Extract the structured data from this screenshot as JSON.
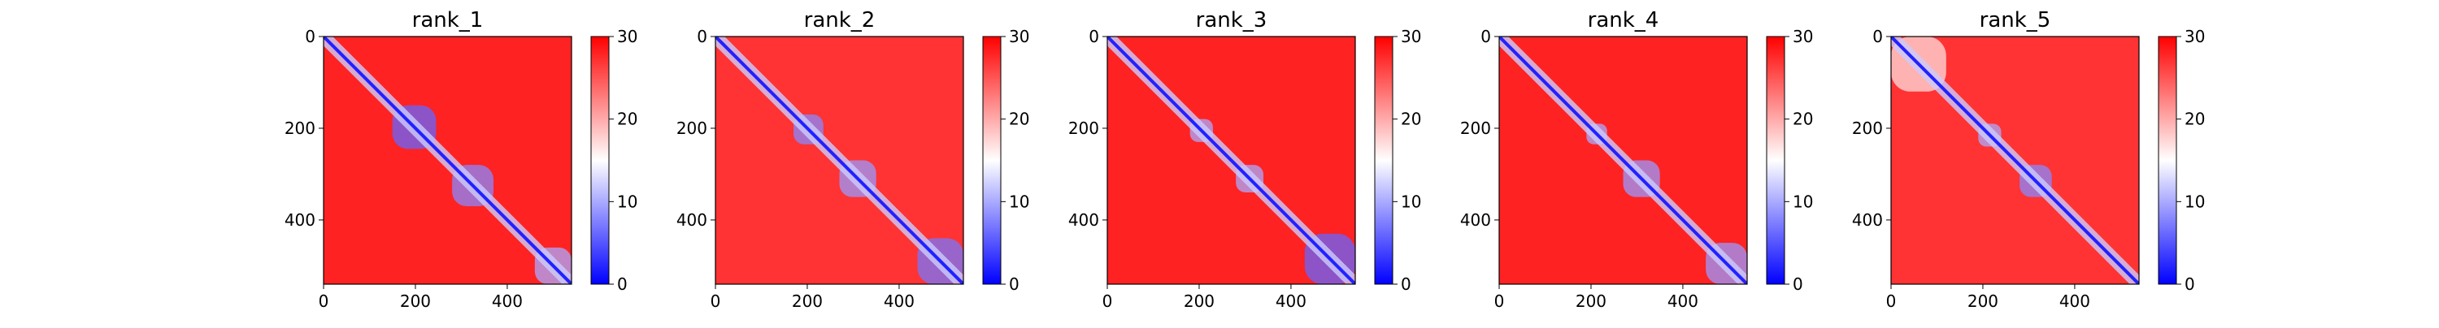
{
  "colors": {
    "low": "#0000ff",
    "mid": "#ffffff",
    "high": "#ff0000"
  },
  "chart_data": [
    {
      "type": "heatmap",
      "title": "rank_1",
      "xlim": [
        0,
        540
      ],
      "ylim": [
        540,
        0
      ],
      "xticks": [
        "0",
        "200",
        "400"
      ],
      "yticks": [
        "0",
        "200",
        "400"
      ],
      "colorbar": {
        "range": [
          0,
          30
        ],
        "ticks": [
          "0",
          "10",
          "20",
          "30"
        ]
      },
      "colormap": "bwr",
      "domains": [
        {
          "start": 150,
          "end": 245,
          "value": 6
        },
        {
          "start": 280,
          "end": 370,
          "value": 8
        },
        {
          "start": 460,
          "end": 540,
          "value": 10
        }
      ],
      "background": 28
    },
    {
      "type": "heatmap",
      "title": "rank_2",
      "xlim": [
        0,
        540
      ],
      "ylim": [
        540,
        0
      ],
      "xticks": [
        "0",
        "200",
        "400"
      ],
      "yticks": [
        "0",
        "200",
        "400"
      ],
      "colorbar": {
        "range": [
          0,
          30
        ],
        "ticks": [
          "0",
          "10",
          "20",
          "30"
        ]
      },
      "colormap": "bwr",
      "domains": [
        {
          "start": 170,
          "end": 235,
          "value": 8
        },
        {
          "start": 270,
          "end": 350,
          "value": 9
        },
        {
          "start": 440,
          "end": 540,
          "value": 7
        }
      ],
      "background": 27
    },
    {
      "type": "heatmap",
      "title": "rank_3",
      "xlim": [
        0,
        540
      ],
      "ylim": [
        540,
        0
      ],
      "xticks": [
        "0",
        "200",
        "400"
      ],
      "yticks": [
        "0",
        "200",
        "400"
      ],
      "colorbar": {
        "range": [
          0,
          30
        ],
        "ticks": [
          "0",
          "10",
          "20",
          "30"
        ]
      },
      "colormap": "bwr",
      "domains": [
        {
          "start": 180,
          "end": 230,
          "value": 10
        },
        {
          "start": 280,
          "end": 340,
          "value": 10
        },
        {
          "start": 430,
          "end": 540,
          "value": 6
        }
      ],
      "background": 28
    },
    {
      "type": "heatmap",
      "title": "rank_4",
      "xlim": [
        0,
        540
      ],
      "ylim": [
        540,
        0
      ],
      "xticks": [
        "0",
        "200",
        "400"
      ],
      "yticks": [
        "0",
        "200",
        "400"
      ],
      "colorbar": {
        "range": [
          0,
          30
        ],
        "ticks": [
          "0",
          "10",
          "20",
          "30"
        ]
      },
      "colormap": "bwr",
      "domains": [
        {
          "start": 190,
          "end": 235,
          "value": 10
        },
        {
          "start": 270,
          "end": 350,
          "value": 9
        },
        {
          "start": 450,
          "end": 540,
          "value": 9
        }
      ],
      "background": 28
    },
    {
      "type": "heatmap",
      "title": "rank_5",
      "xlim": [
        0,
        540
      ],
      "ylim": [
        540,
        0
      ],
      "xticks": [
        "0",
        "200",
        "400"
      ],
      "yticks": [
        "0",
        "200",
        "400"
      ],
      "colorbar": {
        "range": [
          0,
          30
        ],
        "ticks": [
          "0",
          "10",
          "20",
          "30"
        ]
      },
      "colormap": "bwr",
      "domains": [
        {
          "start": 0,
          "end": 120,
          "value": 17
        },
        {
          "start": 190,
          "end": 240,
          "value": 10
        },
        {
          "start": 280,
          "end": 350,
          "value": 8
        }
      ],
      "background": 27
    }
  ]
}
